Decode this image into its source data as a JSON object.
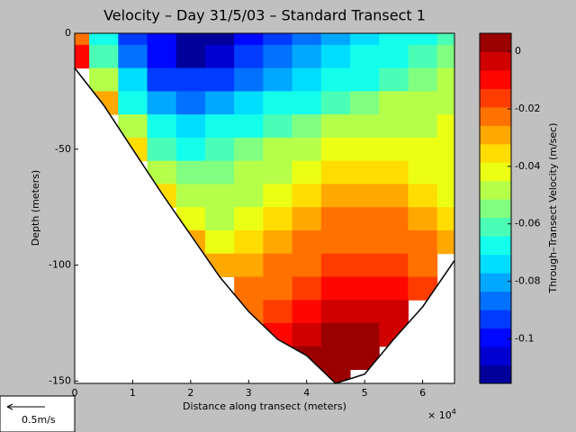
{
  "chart_data": {
    "type": "contour",
    "title": "Velocity – Day 31/5/03 – Standard Transect 1",
    "x_label": "Distance along transect (meters)",
    "y_label": "Depth (meters)",
    "x_multiplier": {
      "base": "× 10",
      "exponent": "4"
    },
    "colorbar_label": "Through–Transect Velocity (m/sec)",
    "scale_label": "0.5m/s",
    "xlim": [
      0,
      6.55
    ],
    "xticks": [
      0,
      1,
      2,
      3,
      4,
      5,
      6
    ],
    "ylim": [
      -151,
      0
    ],
    "yticks": [
      0,
      -50,
      -100,
      -150
    ],
    "clim": [
      -0.1155,
      0.0063
    ],
    "cticks": [
      0,
      -0.02,
      -0.04,
      -0.06,
      -0.08,
      -0.1
    ],
    "levels": 19,
    "colormap": "jet",
    "x": [
      0,
      0.5,
      1,
      1.5,
      2,
      2.5,
      3,
      3.5,
      4,
      4.5,
      5,
      5.5,
      6,
      6.5
    ],
    "depths": [
      0,
      -10,
      -20,
      -30,
      -40,
      -50,
      -60,
      -70,
      -80,
      -90,
      -100,
      -110,
      -120,
      -130,
      -140,
      -150
    ],
    "values": [
      [
        -0.02,
        -0.07,
        -0.09,
        -0.1,
        -0.11,
        -0.11,
        -0.1,
        -0.09,
        -0.085,
        -0.08,
        -0.075,
        -0.07,
        -0.065,
        -0.06
      ],
      [
        -0.01,
        -0.06,
        -0.085,
        -0.1,
        -0.11,
        -0.105,
        -0.095,
        -0.085,
        -0.08,
        -0.075,
        -0.07,
        -0.065,
        -0.06,
        -0.055
      ],
      [
        null,
        -0.045,
        -0.075,
        -0.09,
        -0.095,
        -0.09,
        -0.085,
        -0.08,
        -0.075,
        -0.07,
        -0.065,
        -0.06,
        -0.055,
        -0.05
      ],
      [
        null,
        -0.03,
        -0.065,
        -0.08,
        -0.085,
        -0.08,
        -0.075,
        -0.07,
        -0.065,
        -0.06,
        -0.055,
        -0.05,
        -0.05,
        -0.045
      ],
      [
        null,
        null,
        -0.05,
        -0.07,
        -0.075,
        -0.07,
        -0.065,
        -0.06,
        -0.055,
        -0.05,
        -0.045,
        -0.045,
        -0.045,
        -0.04
      ],
      [
        null,
        null,
        -0.035,
        -0.06,
        -0.065,
        -0.06,
        -0.055,
        -0.05,
        -0.045,
        -0.04,
        -0.04,
        -0.04,
        -0.04,
        -0.04
      ],
      [
        null,
        null,
        null,
        -0.05,
        -0.055,
        -0.055,
        -0.05,
        -0.045,
        -0.04,
        -0.035,
        -0.035,
        -0.035,
        -0.04,
        -0.04
      ],
      [
        null,
        null,
        null,
        -0.035,
        -0.05,
        -0.05,
        -0.045,
        -0.04,
        -0.035,
        -0.03,
        -0.03,
        -0.03,
        -0.035,
        -0.04
      ],
      [
        null,
        null,
        null,
        null,
        -0.04,
        -0.045,
        -0.04,
        -0.035,
        -0.03,
        -0.025,
        -0.025,
        -0.025,
        -0.03,
        -0.035
      ],
      [
        null,
        null,
        null,
        null,
        -0.03,
        -0.04,
        -0.035,
        -0.03,
        -0.025,
        -0.02,
        -0.02,
        -0.02,
        -0.025,
        -0.03
      ],
      [
        null,
        null,
        null,
        null,
        null,
        -0.03,
        -0.03,
        -0.025,
        -0.02,
        -0.015,
        -0.015,
        -0.015,
        -0.02,
        null
      ],
      [
        null,
        null,
        null,
        null,
        null,
        null,
        -0.025,
        -0.02,
        -0.015,
        -0.01,
        -0.01,
        -0.01,
        -0.015,
        null
      ],
      [
        null,
        null,
        null,
        null,
        null,
        null,
        -0.02,
        -0.015,
        -0.01,
        -0.005,
        -0.005,
        -0.005,
        null,
        null
      ],
      [
        null,
        null,
        null,
        null,
        null,
        null,
        null,
        -0.01,
        -0.005,
        0,
        0,
        -0.005,
        null,
        null
      ],
      [
        null,
        null,
        null,
        null,
        null,
        null,
        null,
        null,
        0,
        0.002,
        0.002,
        null,
        null,
        null
      ],
      [
        null,
        null,
        null,
        null,
        null,
        null,
        null,
        null,
        null,
        0.003,
        null,
        null,
        null,
        null
      ]
    ],
    "bottom": {
      "x": [
        0,
        0.5,
        1,
        1.5,
        2,
        2.5,
        3,
        3.5,
        4,
        4.5,
        5,
        5.5,
        6,
        6.55
      ],
      "depth": [
        -15,
        -31,
        -50,
        -69,
        -87,
        -105,
        -120,
        -132,
        -139,
        -151,
        -147,
        -132,
        -118,
        -98
      ]
    }
  }
}
